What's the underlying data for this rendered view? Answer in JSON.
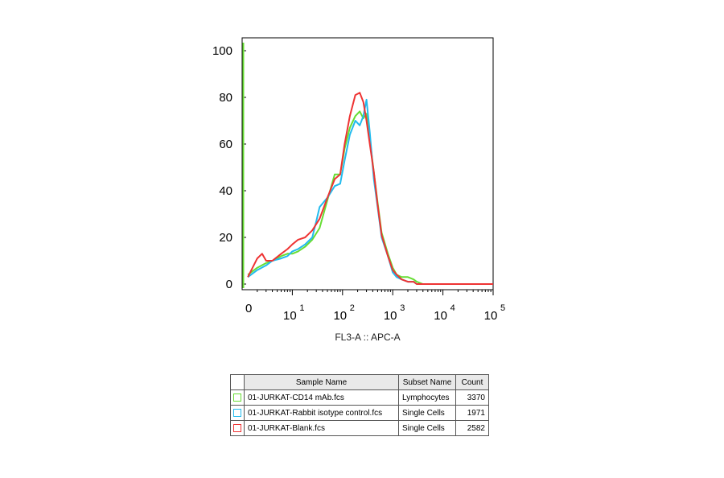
{
  "chart_data": {
    "type": "line",
    "xlabel": "FL3-A :: APC-A",
    "ylabel": "",
    "x_scale": "log",
    "xlim": [
      1,
      100000
    ],
    "ylim": [
      0,
      100
    ],
    "y_ticks": [
      0,
      20,
      40,
      60,
      80,
      100
    ],
    "x_ticks": [
      {
        "value": 10,
        "base": "10",
        "exp": "1"
      },
      {
        "value": 100,
        "base": "10",
        "exp": "2"
      },
      {
        "value": 1000,
        "base": "10",
        "exp": "3"
      },
      {
        "value": 10000,
        "base": "10",
        "exp": "4"
      },
      {
        "value": 100000,
        "base": "10",
        "exp": "5"
      }
    ],
    "grid": false,
    "series": [
      {
        "name": "01-JURKAT-CD14 mAb.fcs",
        "color": "#66dd33",
        "x": [
          1.3,
          2,
          3,
          4,
          6,
          8,
          10,
          13,
          18,
          25,
          35,
          50,
          70,
          90,
          110,
          140,
          180,
          220,
          260,
          300,
          350,
          420,
          500,
          600,
          800,
          1000,
          1200,
          1500,
          2000,
          2600,
          3000,
          4000,
          10000,
          100000
        ],
        "y": [
          4,
          7,
          9,
          10,
          12,
          13,
          13,
          14,
          16,
          19,
          24,
          36,
          47,
          47,
          58,
          67,
          72,
          74,
          71,
          73,
          62,
          48,
          35,
          22,
          13,
          7,
          4,
          3,
          3,
          2,
          1,
          0,
          0,
          0
        ]
      },
      {
        "name": "01-JURKAT-Rabbit isotype control.fcs",
        "color": "#22bbee",
        "x": [
          1.3,
          2,
          3,
          4,
          6,
          8,
          10,
          13,
          18,
          25,
          30,
          35,
          50,
          70,
          90,
          110,
          140,
          180,
          220,
          260,
          300,
          350,
          420,
          500,
          600,
          800,
          1000,
          1200,
          1500,
          2000,
          2600,
          3000,
          4000,
          10000,
          100000
        ],
        "y": [
          3,
          6,
          8,
          10,
          11,
          12,
          14,
          15,
          17,
          20,
          27,
          33,
          37,
          42,
          43,
          53,
          64,
          70,
          68,
          72,
          79,
          65,
          45,
          33,
          20,
          12,
          5,
          3,
          2,
          1,
          1,
          0,
          0,
          0,
          0
        ]
      },
      {
        "name": "01-JURKAT-Blank.fcs",
        "color": "#ee3333",
        "x": [
          1.3,
          2,
          2.5,
          3,
          4,
          6,
          8,
          10,
          13,
          18,
          25,
          35,
          50,
          70,
          90,
          110,
          140,
          180,
          220,
          260,
          300,
          350,
          420,
          500,
          600,
          800,
          1000,
          1200,
          1500,
          2000,
          2600,
          3000,
          4000,
          10000,
          100000
        ],
        "y": [
          3,
          11,
          13,
          10,
          10,
          13,
          15,
          17,
          19,
          20,
          23,
          28,
          37,
          45,
          47,
          60,
          72,
          81,
          82,
          78,
          70,
          60,
          48,
          34,
          21,
          12,
          6,
          4,
          2,
          1,
          1,
          0,
          0,
          0,
          0
        ]
      }
    ]
  },
  "legend": {
    "headers": {
      "name": "Sample Name",
      "subset": "Subset Name",
      "count": "Count"
    },
    "rows": [
      {
        "name": "01-JURKAT-CD14 mAb.fcs",
        "subset": "Lymphocytes",
        "count": "3370",
        "color": "#66dd33"
      },
      {
        "name": "01-JURKAT-Rabbit isotype control.fcs",
        "subset": "Single Cells",
        "count": "1971",
        "color": "#22bbee"
      },
      {
        "name": "01-JURKAT-Blank.fcs",
        "subset": "Single Cells",
        "count": "2582",
        "color": "#ee3333"
      }
    ]
  }
}
